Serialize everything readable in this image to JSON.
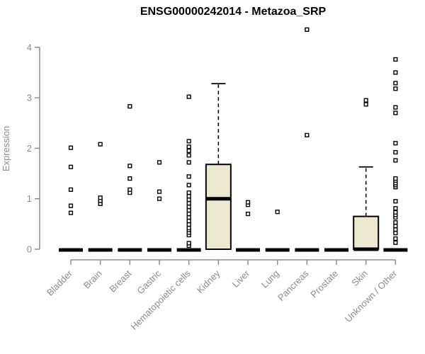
{
  "chart_data": {
    "type": "boxplot",
    "title": "ENSG00000242014 - Metazoa_SRP",
    "ylabel": "Expression",
    "xlabel": "",
    "ylim": [
      0,
      4
    ],
    "yticks": [
      0,
      1,
      2,
      3,
      4
    ],
    "grid": false,
    "legend": null,
    "point_style": "open-square",
    "colors": {
      "axis": "#8c8c8c",
      "box_fill": "#ede9d0",
      "box_stroke": "#000000",
      "background": "#ffffff",
      "title": "#000000"
    },
    "categories": [
      "Bladder",
      "Brain",
      "Breast",
      "Gastric",
      "Hematopoietic cells",
      "Kidney",
      "Liver",
      "Lung",
      "Pancreas",
      "Prostate",
      "Skin",
      "Unknown / Other"
    ],
    "boxes": [
      {
        "category": "Bladder",
        "median": 0,
        "q1": 0,
        "q3": 0,
        "whisker_low": 0,
        "whisker_high": 0,
        "outliers": [
          0.72,
          0.86,
          1.18,
          1.63,
          2.01
        ]
      },
      {
        "category": "Brain",
        "median": 0,
        "q1": 0,
        "q3": 0,
        "whisker_low": 0,
        "whisker_high": 0,
        "outliers": [
          0.9,
          0.96,
          1.02,
          2.08
        ]
      },
      {
        "category": "Breast",
        "median": 0,
        "q1": 0,
        "q3": 0,
        "whisker_low": 0,
        "whisker_high": 0,
        "outliers": [
          1.12,
          1.18,
          1.4,
          1.65,
          2.83
        ]
      },
      {
        "category": "Gastric",
        "median": 0,
        "q1": 0,
        "q3": 0,
        "whisker_low": 0,
        "whisker_high": 0,
        "outliers": [
          1.0,
          1.14,
          1.72
        ]
      },
      {
        "category": "Hematopoietic cells",
        "median": 0,
        "q1": 0,
        "q3": 0,
        "whisker_low": 0,
        "whisker_high": 0,
        "outliers": [
          0.07,
          0.12,
          0.28,
          0.33,
          0.38,
          0.42,
          0.49,
          0.56,
          0.63,
          0.7,
          0.77,
          0.84,
          0.91,
          0.98,
          1.05,
          1.12,
          1.27,
          1.44,
          1.72,
          1.86,
          1.95,
          2.03,
          2.14,
          3.02
        ]
      },
      {
        "category": "Kidney",
        "median": 1.0,
        "q1": 0,
        "q3": 1.68,
        "whisker_low": 0,
        "whisker_high": 3.28,
        "outliers": []
      },
      {
        "category": "Liver",
        "median": 0,
        "q1": 0,
        "q3": 0,
        "whisker_low": 0,
        "whisker_high": 0,
        "outliers": [
          0.7,
          0.88,
          0.93
        ]
      },
      {
        "category": "Lung",
        "median": 0,
        "q1": 0,
        "q3": 0,
        "whisker_low": 0,
        "whisker_high": 0,
        "outliers": [
          0.74
        ]
      },
      {
        "category": "Pancreas",
        "median": 0,
        "q1": 0,
        "q3": 0,
        "whisker_low": 0,
        "whisker_high": 0,
        "outliers": [
          2.26,
          4.35
        ]
      },
      {
        "category": "Prostate",
        "median": 0,
        "q1": 0,
        "q3": 0,
        "whisker_low": 0,
        "whisker_high": 0,
        "outliers": []
      },
      {
        "category": "Skin",
        "median": 0,
        "q1": 0,
        "q3": 0.65,
        "whisker_low": 0,
        "whisker_high": 1.63,
        "outliers": [
          2.87,
          2.95
        ]
      },
      {
        "category": "Unknown / Other",
        "median": 0,
        "q1": 0,
        "q3": 0,
        "whisker_low": 0,
        "whisker_high": 0,
        "outliers": [
          0.13,
          0.21,
          0.32,
          0.39,
          0.46,
          0.53,
          0.63,
          0.68,
          0.73,
          0.81,
          0.95,
          1.23,
          1.27,
          1.31,
          1.36,
          1.4,
          1.76,
          1.92,
          2.1,
          2.7,
          2.81,
          3.18,
          3.29,
          3.5,
          3.76
        ]
      }
    ]
  }
}
